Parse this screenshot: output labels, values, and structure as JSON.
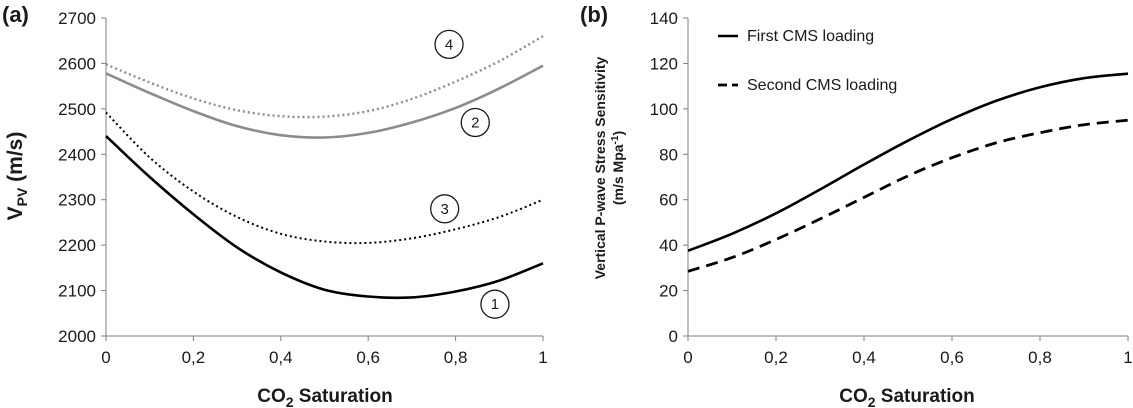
{
  "chart_data": [
    {
      "panel": "(a)",
      "type": "line",
      "xlabel_main": "CO",
      "xlabel_sub": "2",
      "xlabel_rest": " Saturation",
      "ylabel_main": "V",
      "ylabel_sub": "PV",
      "ylabel_rest": " (m/s)",
      "xlim": [
        0,
        1
      ],
      "ylim": [
        2000,
        2700
      ],
      "x_ticks": [
        0,
        0.2,
        0.4,
        0.6,
        0.8,
        1
      ],
      "x_tick_labels": [
        "0",
        "0,2",
        "0,4",
        "0,6",
        "0,8",
        "1"
      ],
      "y_ticks": [
        2000,
        2100,
        2200,
        2300,
        2400,
        2500,
        2600,
        2700
      ],
      "y_tick_labels": [
        "2000",
        "2100",
        "2200",
        "2300",
        "2400",
        "2500",
        "2600",
        "2700"
      ],
      "grid": false,
      "x": [
        0,
        0.1,
        0.2,
        0.3,
        0.4,
        0.5,
        0.6,
        0.7,
        0.8,
        0.9,
        1.0
      ],
      "series": [
        {
          "name": "1",
          "color": "#000000",
          "style": "solid",
          "width": 2.6,
          "values": [
            2440,
            2350,
            2268,
            2195,
            2140,
            2102,
            2087,
            2085,
            2098,
            2122,
            2160
          ]
        },
        {
          "name": "2",
          "color": "#8c8c8c",
          "style": "solid",
          "width": 2.6,
          "values": [
            2578,
            2535,
            2495,
            2462,
            2442,
            2437,
            2447,
            2470,
            2502,
            2545,
            2595
          ]
        },
        {
          "name": "3",
          "color": "#000000",
          "style": "dotted",
          "width": 2.0,
          "values": [
            2492,
            2393,
            2318,
            2262,
            2225,
            2208,
            2205,
            2215,
            2235,
            2262,
            2300
          ]
        },
        {
          "name": "4",
          "color": "#8c8c8c",
          "style": "dotted",
          "width": 2.4,
          "values": [
            2598,
            2558,
            2523,
            2497,
            2484,
            2483,
            2495,
            2522,
            2560,
            2605,
            2660
          ]
        }
      ],
      "curve_labels": [
        {
          "text": "1",
          "x": 0.89,
          "y": 2070
        },
        {
          "text": "2",
          "x": 0.845,
          "y": 2470
        },
        {
          "text": "3",
          "x": 0.775,
          "y": 2280
        },
        {
          "text": "4",
          "x": 0.785,
          "y": 2642
        }
      ]
    },
    {
      "panel": "(b)",
      "type": "line",
      "xlabel_main": "CO",
      "xlabel_sub": "2",
      "xlabel_rest": " Saturation",
      "ylabel_line1": "Vertical P-wave  Stress Sensitivity",
      "ylabel_line2_main": "(m/s Mpa",
      "ylabel_line2_sup": "-1",
      "ylabel_line2_end": ")",
      "xlim": [
        0,
        1
      ],
      "ylim": [
        0,
        140
      ],
      "x_ticks": [
        0,
        0.2,
        0.4,
        0.6,
        0.8,
        1
      ],
      "x_tick_labels": [
        "0",
        "0,2",
        "0,4",
        "0,6",
        "0,8",
        "1"
      ],
      "y_ticks": [
        0,
        20,
        40,
        60,
        80,
        100,
        120,
        140
      ],
      "y_tick_labels": [
        "0",
        "20",
        "40",
        "60",
        "80",
        "100",
        "120",
        "140"
      ],
      "grid": false,
      "legend": "top-left",
      "x": [
        0,
        0.1,
        0.2,
        0.3,
        0.4,
        0.5,
        0.6,
        0.7,
        0.8,
        0.9,
        1.0
      ],
      "series": [
        {
          "name": "First CMS loading",
          "color": "#000000",
          "style": "solid",
          "width": 2.6,
          "values": [
            37.5,
            45,
            54,
            64.5,
            75.5,
            86,
            95.5,
            103.5,
            109.5,
            113.5,
            115.5
          ]
        },
        {
          "name": "Second CMS loading",
          "color": "#000000",
          "style": "dashed",
          "width": 2.8,
          "values": [
            28.5,
            34.5,
            42.5,
            51.5,
            61,
            70.5,
            78.5,
            85,
            89.5,
            93,
            95
          ]
        }
      ]
    }
  ]
}
